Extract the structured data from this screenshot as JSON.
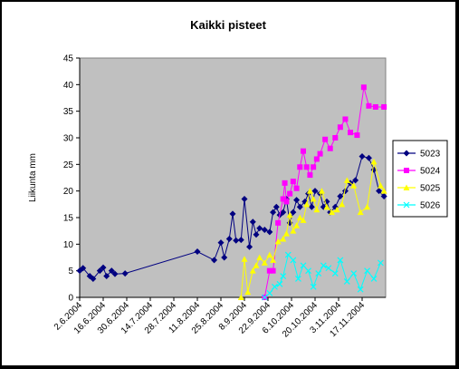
{
  "chart_data": {
    "type": "line",
    "title": "Kaikki pisteet",
    "ylabel": "Liikunta mm",
    "xlabel": "",
    "ylim": [
      0,
      45
    ],
    "y_ticks": [
      0,
      5,
      10,
      15,
      20,
      25,
      30,
      35,
      40,
      45
    ],
    "x_range": [
      "2004-06-02",
      "2004-12-01"
    ],
    "x_ticks": [
      "2.6.2004",
      "16.6.2004",
      "30.6.2004",
      "14.7.2004",
      "28.7.2004",
      "11.8.2004",
      "25.8.2004",
      "8.9.2004",
      "22.9.2004",
      "6.10.2004",
      "20.10.2004",
      "3.11.2004",
      "17.11.2004"
    ],
    "grid": false,
    "plot_background": "#c0c0c0",
    "legend_position": "right",
    "series": [
      {
        "name": "5023",
        "color": "#000080",
        "marker": "diamond",
        "x": [
          "2004-06-02",
          "2004-06-04",
          "2004-06-08",
          "2004-06-10",
          "2004-06-14",
          "2004-06-16",
          "2004-06-18",
          "2004-06-21",
          "2004-06-23",
          "2004-06-29",
          "2004-08-11",
          "2004-08-21",
          "2004-08-25",
          "2004-08-27",
          "2004-08-30",
          "2004-09-01",
          "2004-09-03",
          "2004-09-06",
          "2004-09-08",
          "2004-09-11",
          "2004-09-13",
          "2004-09-15",
          "2004-09-17",
          "2004-09-20",
          "2004-09-23",
          "2004-09-25",
          "2004-09-27",
          "2004-09-29",
          "2004-10-01",
          "2004-10-03",
          "2004-10-05",
          "2004-10-07",
          "2004-10-09",
          "2004-10-11",
          "2004-10-14",
          "2004-10-16",
          "2004-10-18",
          "2004-10-20",
          "2004-10-23",
          "2004-10-25",
          "2004-10-27",
          "2004-10-29",
          "2004-11-01",
          "2004-11-04",
          "2004-11-07",
          "2004-11-10",
          "2004-11-13",
          "2004-11-17",
          "2004-11-21",
          "2004-11-24",
          "2004-11-27",
          "2004-11-30"
        ],
        "y": [
          5,
          5.5,
          4,
          3.5,
          5,
          5.6,
          4,
          5,
          4.4,
          4.5,
          8.6,
          7,
          10.3,
          7.5,
          11,
          15.7,
          10.7,
          10.8,
          18.5,
          9.5,
          14.2,
          11.8,
          13,
          12.7,
          12.3,
          16,
          17,
          15.5,
          16,
          18.5,
          14,
          16,
          18.3,
          17,
          18,
          19.5,
          17,
          20,
          19.5,
          17,
          18,
          16,
          17,
          19,
          20,
          21.5,
          22,
          26.5,
          26.2,
          24,
          20,
          19
        ]
      },
      {
        "name": "5024",
        "color": "#ff00ff",
        "marker": "square",
        "x": [
          "2004-09-20",
          "2004-09-23",
          "2004-09-25",
          "2004-09-28",
          "2004-10-01",
          "2004-10-02",
          "2004-10-03",
          "2004-10-05",
          "2004-10-07",
          "2004-10-09",
          "2004-10-11",
          "2004-10-13",
          "2004-10-15",
          "2004-10-17",
          "2004-10-19",
          "2004-10-21",
          "2004-10-23",
          "2004-10-26",
          "2004-10-29",
          "2004-11-01",
          "2004-11-04",
          "2004-11-07",
          "2004-11-10",
          "2004-11-14",
          "2004-11-18",
          "2004-11-21",
          "2004-11-25",
          "2004-11-30"
        ],
        "y": [
          0,
          5,
          5,
          14,
          18.5,
          21.5,
          18,
          19.5,
          21.8,
          20.5,
          24.5,
          27.5,
          24.5,
          23,
          24.5,
          26,
          27,
          29.7,
          28,
          30,
          32,
          33.5,
          31,
          30.5,
          39.5,
          36,
          35.8,
          35.8
        ]
      },
      {
        "name": "5025",
        "color": "#ffff00",
        "marker": "triangle",
        "x": [
          "2004-09-06",
          "2004-09-08",
          "2004-09-10",
          "2004-09-13",
          "2004-09-15",
          "2004-09-17",
          "2004-09-20",
          "2004-09-23",
          "2004-09-25",
          "2004-09-28",
          "2004-10-01",
          "2004-10-03",
          "2004-10-05",
          "2004-10-07",
          "2004-10-09",
          "2004-10-11",
          "2004-10-13",
          "2004-10-15",
          "2004-10-17",
          "2004-10-19",
          "2004-10-21",
          "2004-10-24",
          "2004-10-27",
          "2004-10-30",
          "2004-11-02",
          "2004-11-05",
          "2004-11-08",
          "2004-11-12",
          "2004-11-16",
          "2004-11-20",
          "2004-11-24",
          "2004-11-28",
          "2004-11-30"
        ],
        "y": [
          0,
          7.2,
          1,
          5,
          6,
          7.5,
          6.5,
          8,
          7,
          10.5,
          11,
          12,
          15.5,
          12.5,
          13.5,
          15,
          14.5,
          17.5,
          20,
          18.5,
          16.5,
          20,
          17,
          16,
          16.5,
          17.5,
          22,
          21,
          16,
          17,
          25.5,
          21,
          20
        ]
      },
      {
        "name": "5026",
        "color": "#00ffff",
        "marker": "x",
        "x": [
          "2004-09-20",
          "2004-09-23",
          "2004-09-26",
          "2004-09-29",
          "2004-10-01",
          "2004-10-04",
          "2004-10-07",
          "2004-10-10",
          "2004-10-13",
          "2004-10-16",
          "2004-10-19",
          "2004-10-22",
          "2004-10-25",
          "2004-10-28",
          "2004-11-01",
          "2004-11-04",
          "2004-11-08",
          "2004-11-12",
          "2004-11-16",
          "2004-11-20",
          "2004-11-24",
          "2004-11-28"
        ],
        "y": [
          0,
          0.8,
          2,
          2.5,
          4,
          8,
          7,
          3.5,
          6,
          5,
          2,
          4.5,
          6,
          5.5,
          4.5,
          7,
          3,
          4.5,
          1.5,
          5,
          3.5,
          6.5
        ]
      }
    ]
  }
}
